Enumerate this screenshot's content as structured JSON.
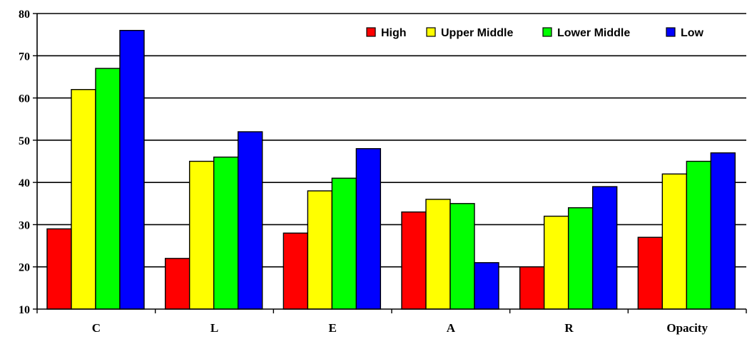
{
  "chart_data": {
    "type": "bar",
    "categories": [
      "C",
      "L",
      "E",
      "A",
      "R",
      "Opacity"
    ],
    "series": [
      {
        "name": "High",
        "color": "#ff0000",
        "values": [
          29,
          22,
          28,
          33,
          20,
          27
        ]
      },
      {
        "name": "Upper Middle",
        "color": "#ffff00",
        "values": [
          62,
          45,
          38,
          36,
          32,
          42
        ]
      },
      {
        "name": "Lower Middle",
        "color": "#00ff00",
        "values": [
          67,
          46,
          41,
          35,
          34,
          45
        ]
      },
      {
        "name": "Low",
        "color": "#0000ff",
        "values": [
          76,
          52,
          48,
          21,
          39,
          47
        ]
      }
    ],
    "ylim": [
      10,
      80
    ],
    "yticks": [
      10,
      20,
      30,
      40,
      50,
      60,
      70,
      80
    ],
    "grid": true,
    "legend_position": "top-right"
  }
}
